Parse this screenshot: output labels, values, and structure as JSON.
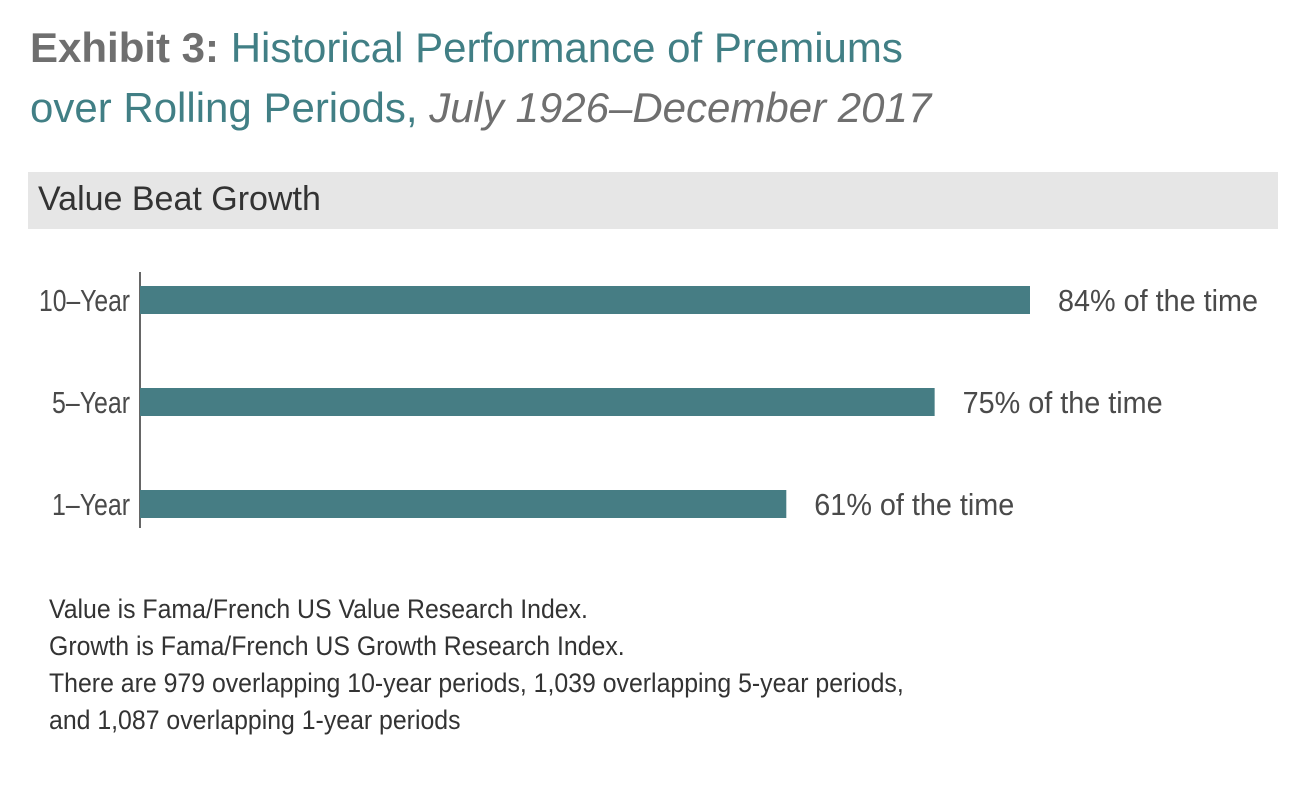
{
  "title": {
    "exhibit": "Exhibit 3:",
    "main_line1": "Historical Performance of Premiums",
    "main_line2": "over Rolling Periods,",
    "period": "July 1926–December 2017"
  },
  "section_header": "Value Beat Growth",
  "chart_data": {
    "type": "bar",
    "orientation": "horizontal",
    "categories": [
      "10–Year",
      "5–Year",
      "1–Year"
    ],
    "values": [
      84,
      75,
      61
    ],
    "value_labels": [
      "84% of the time",
      "75% of the time",
      "61% of the time"
    ],
    "unit": "%",
    "xlim": [
      0,
      100
    ],
    "grid": false,
    "bar_color": "#467d84"
  },
  "notes": [
    "Value is Fama/French US Value Research Index.",
    "Growth is Fama/French US Growth Research Index.",
    "There are 979 overlapping 10-year periods, 1,039 overlapping 5-year periods,",
    "and 1,087 overlapping 1-year periods"
  ],
  "colors": {
    "accent": "#417f85",
    "title_gray": "#6f6f6f",
    "header_bg": "#e6e6e6"
  }
}
